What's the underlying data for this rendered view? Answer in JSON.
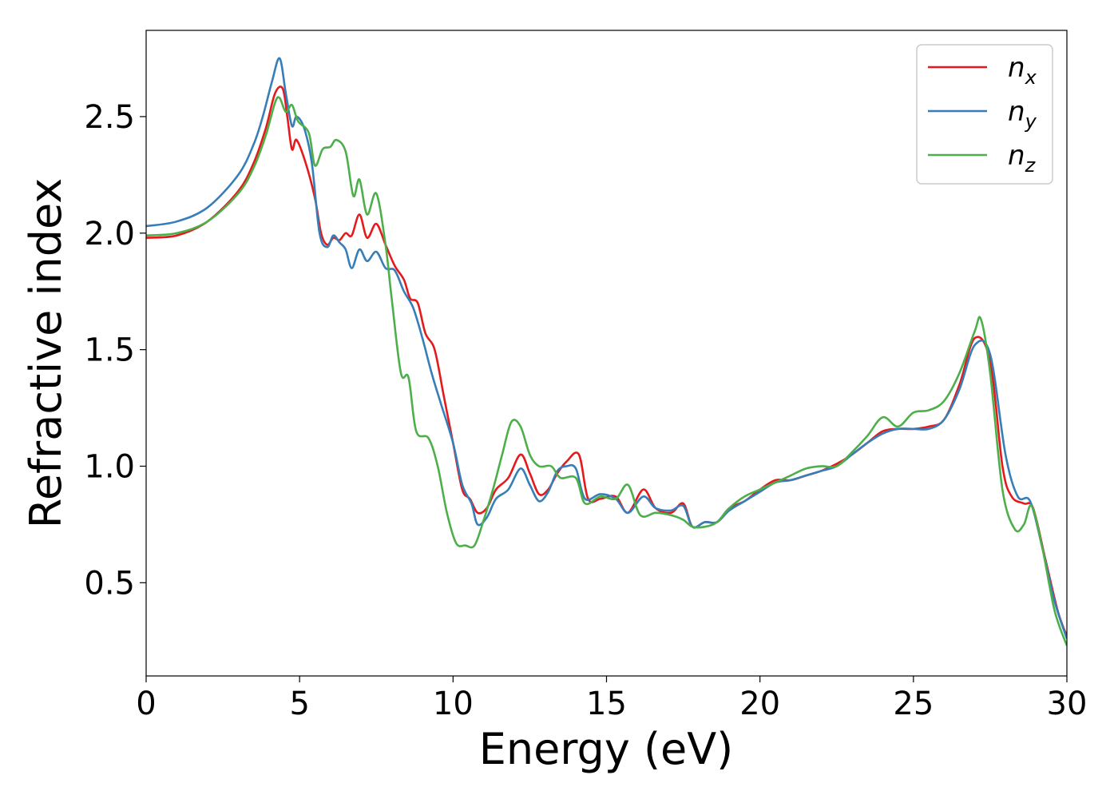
{
  "chart_data": {
    "type": "line",
    "title": "",
    "xlabel": "Energy (eV)",
    "ylabel": "Refractive index",
    "xlim": [
      0,
      30
    ],
    "ylim": [
      0.1,
      2.87
    ],
    "xticks": [
      0,
      5,
      10,
      15,
      20,
      25,
      30
    ],
    "xtick_labels": [
      "0",
      "5",
      "10",
      "15",
      "20",
      "25",
      "30"
    ],
    "yticks": [
      0.5,
      1.0,
      1.5,
      2.0,
      2.5
    ],
    "ytick_labels": [
      "0.5",
      "1.0",
      "1.5",
      "2.0",
      "2.5"
    ],
    "grid": false,
    "legend_position": "top-right",
    "series": [
      {
        "name": "n",
        "subscript": "x",
        "color": "#e41a1c",
        "points": [
          [
            0,
            1.98
          ],
          [
            1,
            1.99
          ],
          [
            2,
            2.05
          ],
          [
            3,
            2.18
          ],
          [
            3.5,
            2.3
          ],
          [
            3.9,
            2.45
          ],
          [
            4.2,
            2.6
          ],
          [
            4.45,
            2.62
          ],
          [
            4.6,
            2.5
          ],
          [
            4.75,
            2.36
          ],
          [
            4.9,
            2.4
          ],
          [
            5.2,
            2.3
          ],
          [
            5.5,
            2.15
          ],
          [
            5.7,
            2.0
          ],
          [
            5.9,
            1.95
          ],
          [
            6.1,
            1.98
          ],
          [
            6.3,
            1.97
          ],
          [
            6.5,
            2.0
          ],
          [
            6.7,
            1.99
          ],
          [
            6.95,
            2.08
          ],
          [
            7.2,
            1.98
          ],
          [
            7.5,
            2.04
          ],
          [
            7.8,
            1.95
          ],
          [
            8.1,
            1.86
          ],
          [
            8.4,
            1.8
          ],
          [
            8.6,
            1.72
          ],
          [
            8.85,
            1.7
          ],
          [
            9.1,
            1.57
          ],
          [
            9.4,
            1.5
          ],
          [
            9.7,
            1.3
          ],
          [
            10.0,
            1.1
          ],
          [
            10.3,
            0.9
          ],
          [
            10.55,
            0.86
          ],
          [
            10.8,
            0.8
          ],
          [
            11.1,
            0.82
          ],
          [
            11.4,
            0.9
          ],
          [
            11.8,
            0.95
          ],
          [
            12.2,
            1.05
          ],
          [
            12.5,
            0.97
          ],
          [
            12.8,
            0.88
          ],
          [
            13.1,
            0.9
          ],
          [
            13.4,
            0.97
          ],
          [
            13.7,
            1.02
          ],
          [
            14.1,
            1.05
          ],
          [
            14.4,
            0.86
          ],
          [
            14.8,
            0.86
          ],
          [
            15.3,
            0.87
          ],
          [
            15.7,
            0.8
          ],
          [
            16.2,
            0.9
          ],
          [
            16.6,
            0.82
          ],
          [
            17.1,
            0.8
          ],
          [
            17.5,
            0.84
          ],
          [
            17.8,
            0.74
          ],
          [
            18.2,
            0.76
          ],
          [
            18.6,
            0.76
          ],
          [
            19.0,
            0.82
          ],
          [
            19.5,
            0.85
          ],
          [
            20.0,
            0.9
          ],
          [
            20.5,
            0.94
          ],
          [
            21.0,
            0.94
          ],
          [
            21.5,
            0.96
          ],
          [
            22.0,
            0.98
          ],
          [
            22.5,
            1.01
          ],
          [
            23.0,
            1.05
          ],
          [
            23.5,
            1.1
          ],
          [
            24.0,
            1.15
          ],
          [
            24.5,
            1.16
          ],
          [
            25.0,
            1.16
          ],
          [
            25.5,
            1.17
          ],
          [
            26.0,
            1.2
          ],
          [
            26.5,
            1.35
          ],
          [
            27.0,
            1.55
          ],
          [
            27.5,
            1.45
          ],
          [
            27.9,
            1.0
          ],
          [
            28.2,
            0.87
          ],
          [
            28.6,
            0.84
          ],
          [
            28.9,
            0.82
          ],
          [
            29.3,
            0.6
          ],
          [
            29.7,
            0.38
          ],
          [
            30,
            0.27
          ]
        ]
      },
      {
        "name": "n",
        "subscript": "y",
        "color": "#377eb8",
        "points": [
          [
            0,
            2.03
          ],
          [
            1,
            2.05
          ],
          [
            2,
            2.11
          ],
          [
            3,
            2.25
          ],
          [
            3.5,
            2.38
          ],
          [
            3.8,
            2.5
          ],
          [
            4.1,
            2.65
          ],
          [
            4.35,
            2.75
          ],
          [
            4.55,
            2.6
          ],
          [
            4.75,
            2.46
          ],
          [
            4.9,
            2.5
          ],
          [
            5.15,
            2.45
          ],
          [
            5.4,
            2.3
          ],
          [
            5.65,
            2.0
          ],
          [
            5.9,
            1.94
          ],
          [
            6.1,
            1.99
          ],
          [
            6.3,
            1.96
          ],
          [
            6.5,
            1.93
          ],
          [
            6.7,
            1.85
          ],
          [
            6.95,
            1.93
          ],
          [
            7.2,
            1.88
          ],
          [
            7.5,
            1.92
          ],
          [
            7.8,
            1.85
          ],
          [
            8.1,
            1.84
          ],
          [
            8.4,
            1.75
          ],
          [
            8.7,
            1.68
          ],
          [
            9.0,
            1.55
          ],
          [
            9.3,
            1.4
          ],
          [
            9.6,
            1.27
          ],
          [
            10.0,
            1.1
          ],
          [
            10.3,
            0.92
          ],
          [
            10.6,
            0.84
          ],
          [
            10.8,
            0.75
          ],
          [
            11.1,
            0.78
          ],
          [
            11.4,
            0.86
          ],
          [
            11.8,
            0.9
          ],
          [
            12.2,
            0.99
          ],
          [
            12.5,
            0.92
          ],
          [
            12.8,
            0.85
          ],
          [
            13.1,
            0.89
          ],
          [
            13.4,
            0.98
          ],
          [
            13.7,
            1.0
          ],
          [
            14.0,
            0.99
          ],
          [
            14.3,
            0.86
          ],
          [
            14.8,
            0.88
          ],
          [
            15.3,
            0.86
          ],
          [
            15.7,
            0.8
          ],
          [
            16.2,
            0.87
          ],
          [
            16.6,
            0.82
          ],
          [
            17.1,
            0.81
          ],
          [
            17.5,
            0.83
          ],
          [
            17.8,
            0.74
          ],
          [
            18.2,
            0.76
          ],
          [
            18.6,
            0.76
          ],
          [
            19.0,
            0.81
          ],
          [
            19.5,
            0.85
          ],
          [
            20.0,
            0.89
          ],
          [
            20.5,
            0.93
          ],
          [
            21.0,
            0.94
          ],
          [
            21.5,
            0.96
          ],
          [
            22.0,
            0.98
          ],
          [
            22.5,
            1.0
          ],
          [
            23.0,
            1.05
          ],
          [
            23.5,
            1.1
          ],
          [
            24.0,
            1.14
          ],
          [
            24.5,
            1.16
          ],
          [
            25.0,
            1.16
          ],
          [
            25.5,
            1.16
          ],
          [
            26.0,
            1.2
          ],
          [
            26.5,
            1.33
          ],
          [
            27.0,
            1.52
          ],
          [
            27.5,
            1.48
          ],
          [
            28.0,
            1.05
          ],
          [
            28.4,
            0.87
          ],
          [
            28.8,
            0.85
          ],
          [
            29.2,
            0.65
          ],
          [
            29.6,
            0.42
          ],
          [
            30,
            0.26
          ]
        ]
      },
      {
        "name": "n",
        "subscript": "z",
        "color": "#4daf4a",
        "points": [
          [
            0,
            1.99
          ],
          [
            1,
            2.0
          ],
          [
            2,
            2.05
          ],
          [
            3,
            2.17
          ],
          [
            3.5,
            2.28
          ],
          [
            3.9,
            2.42
          ],
          [
            4.2,
            2.56
          ],
          [
            4.35,
            2.58
          ],
          [
            4.55,
            2.52
          ],
          [
            4.75,
            2.55
          ],
          [
            4.95,
            2.48
          ],
          [
            5.3,
            2.43
          ],
          [
            5.5,
            2.29
          ],
          [
            5.75,
            2.36
          ],
          [
            6.0,
            2.37
          ],
          [
            6.2,
            2.4
          ],
          [
            6.5,
            2.35
          ],
          [
            6.75,
            2.16
          ],
          [
            6.95,
            2.23
          ],
          [
            7.2,
            2.08
          ],
          [
            7.5,
            2.17
          ],
          [
            7.8,
            1.95
          ],
          [
            8.0,
            1.72
          ],
          [
            8.3,
            1.4
          ],
          [
            8.55,
            1.38
          ],
          [
            8.8,
            1.15
          ],
          [
            9.2,
            1.12
          ],
          [
            9.5,
            1.0
          ],
          [
            9.8,
            0.8
          ],
          [
            10.1,
            0.67
          ],
          [
            10.4,
            0.66
          ],
          [
            10.7,
            0.66
          ],
          [
            11.0,
            0.77
          ],
          [
            11.3,
            0.9
          ],
          [
            11.6,
            1.05
          ],
          [
            11.9,
            1.19
          ],
          [
            12.2,
            1.17
          ],
          [
            12.5,
            1.05
          ],
          [
            12.8,
            1.0
          ],
          [
            13.2,
            1.0
          ],
          [
            13.5,
            0.95
          ],
          [
            14.0,
            0.95
          ],
          [
            14.3,
            0.84
          ],
          [
            14.8,
            0.87
          ],
          [
            15.3,
            0.86
          ],
          [
            15.7,
            0.92
          ],
          [
            16.1,
            0.79
          ],
          [
            16.6,
            0.8
          ],
          [
            17.1,
            0.79
          ],
          [
            17.5,
            0.77
          ],
          [
            17.8,
            0.74
          ],
          [
            18.2,
            0.74
          ],
          [
            18.6,
            0.76
          ],
          [
            19.0,
            0.82
          ],
          [
            19.5,
            0.87
          ],
          [
            20.0,
            0.9
          ],
          [
            20.5,
            0.93
          ],
          [
            21.0,
            0.96
          ],
          [
            21.5,
            0.99
          ],
          [
            22.0,
            1.0
          ],
          [
            22.5,
            1.0
          ],
          [
            23.0,
            1.06
          ],
          [
            23.5,
            1.13
          ],
          [
            24.0,
            1.21
          ],
          [
            24.5,
            1.17
          ],
          [
            25.0,
            1.23
          ],
          [
            25.5,
            1.24
          ],
          [
            26.0,
            1.28
          ],
          [
            26.5,
            1.4
          ],
          [
            27.0,
            1.58
          ],
          [
            27.2,
            1.63
          ],
          [
            27.5,
            1.4
          ],
          [
            27.9,
            0.9
          ],
          [
            28.3,
            0.73
          ],
          [
            28.6,
            0.75
          ],
          [
            28.85,
            0.83
          ],
          [
            29.2,
            0.65
          ],
          [
            29.6,
            0.38
          ],
          [
            30,
            0.23
          ]
        ]
      }
    ]
  }
}
